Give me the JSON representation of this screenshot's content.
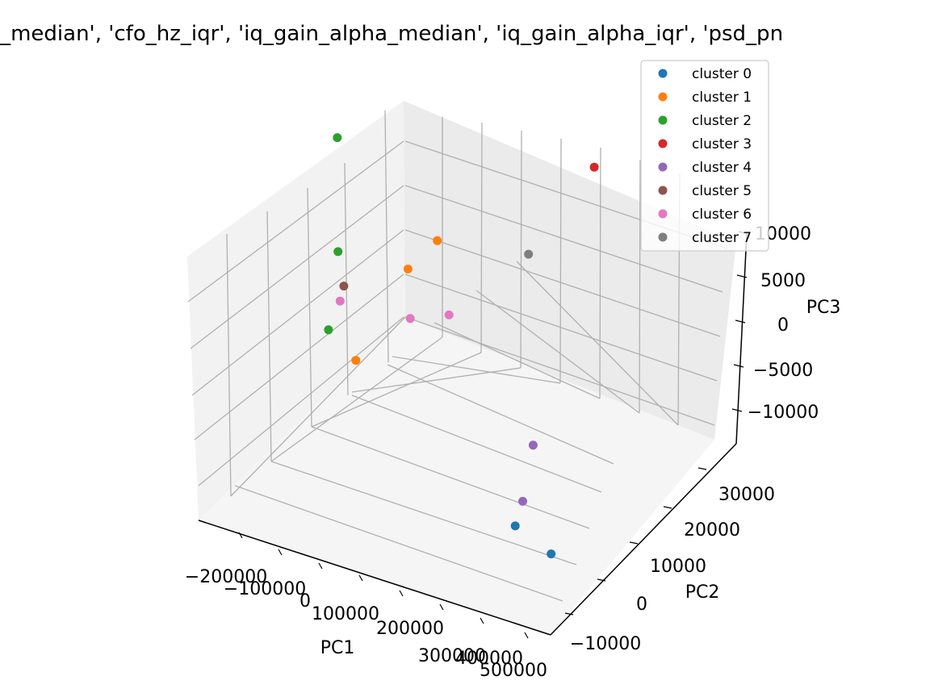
{
  "chart_data": {
    "type": "scatter",
    "projection": "3d",
    "title": "hz_median', 'cfo_hz_iqr', 'iq_gain_alpha_median', 'iq_gain_alpha_iqr', 'psd_pn",
    "xlabel": "PC1",
    "ylabel": "PC2",
    "zlabel": "PC3",
    "x_ticks": [
      "−200000",
      "−100000",
      "0",
      "100000",
      "200000",
      "300000",
      "400000",
      "500000"
    ],
    "y_ticks": [
      "−10000",
      "0",
      "10000",
      "20000",
      "30000"
    ],
    "z_ticks": [
      "−10000",
      "−5000",
      "0",
      "5000",
      "10000"
    ],
    "xlim": [
      -250000,
      550000
    ],
    "ylim": [
      -15000,
      35000
    ],
    "zlim": [
      -12000,
      12000
    ],
    "grid": true,
    "legend_position": "top-right",
    "series": [
      {
        "name": "cluster 0",
        "color": "#1f77b4",
        "points": [
          [
            380000,
            -5000,
            -8000
          ],
          [
            450000,
            -4000,
            -10000
          ]
        ]
      },
      {
        "name": "cluster 1",
        "color": "#ff7f0e",
        "points": [
          [
            -90000,
            20000,
            0
          ],
          [
            -120000,
            10000,
            -5000
          ],
          [
            30000,
            15000,
            6000
          ]
        ]
      },
      {
        "name": "cluster 2",
        "color": "#2ca02c",
        "points": [
          [
            -240000,
            20000,
            10000
          ],
          [
            -200000,
            15000,
            2000
          ],
          [
            -180000,
            10000,
            -3000
          ]
        ]
      },
      {
        "name": "cluster 3",
        "color": "#d62728",
        "points": [
          [
            250000,
            30000,
            10000
          ]
        ]
      },
      {
        "name": "cluster 4",
        "color": "#9467bd",
        "points": [
          [
            330000,
            5000,
            -5000
          ],
          [
            350000,
            0,
            -8000
          ]
        ]
      },
      {
        "name": "cluster 5",
        "color": "#8c564b",
        "points": [
          [
            -190000,
            15000,
            -1000
          ]
        ]
      },
      {
        "name": "cluster 6",
        "color": "#e377c2",
        "points": [
          [
            -190000,
            14000,
            -2000
          ],
          [
            -40000,
            15000,
            -2000
          ],
          [
            0,
            20000,
            -3000
          ]
        ]
      },
      {
        "name": "cluster 7",
        "color": "#7f7f7f",
        "points": [
          [
            90000,
            30000,
            0
          ]
        ]
      }
    ]
  }
}
